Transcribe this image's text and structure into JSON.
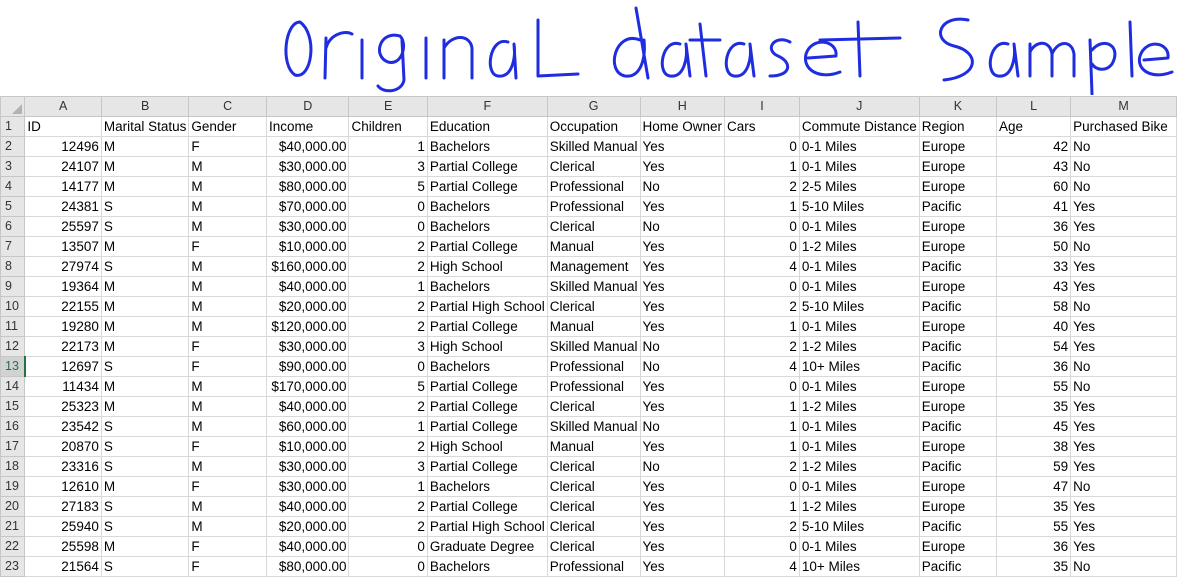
{
  "annotation": {
    "text": "original dataset Sample",
    "color": "#1f2de0"
  },
  "sheet": {
    "columns": [
      "A",
      "B",
      "C",
      "D",
      "E",
      "F",
      "G",
      "H",
      "I",
      "J",
      "K",
      "L",
      "M"
    ],
    "selected_row": "13",
    "header_row": {
      "row": "1",
      "cells": [
        "ID",
        "Marital Status",
        "Gender",
        "Income",
        "Children",
        "Education",
        "Occupation",
        "Home Owner",
        "Cars",
        "Commute Distance",
        "Region",
        "Age",
        "Purchased Bike"
      ]
    },
    "rows": [
      {
        "row": "2",
        "cells": [
          "12496",
          "M",
          "F",
          "$40,000.00",
          "1",
          "Bachelors",
          "Skilled Manual",
          "Yes",
          "0",
          "0-1 Miles",
          "Europe",
          "42",
          "No"
        ]
      },
      {
        "row": "3",
        "cells": [
          "24107",
          "M",
          "M",
          "$30,000.00",
          "3",
          "Partial College",
          "Clerical",
          "Yes",
          "1",
          "0-1 Miles",
          "Europe",
          "43",
          "No"
        ]
      },
      {
        "row": "4",
        "cells": [
          "14177",
          "M",
          "M",
          "$80,000.00",
          "5",
          "Partial College",
          "Professional",
          "No",
          "2",
          "2-5 Miles",
          "Europe",
          "60",
          "No"
        ]
      },
      {
        "row": "5",
        "cells": [
          "24381",
          "S",
          "M",
          "$70,000.00",
          "0",
          "Bachelors",
          "Professional",
          "Yes",
          "1",
          "5-10 Miles",
          "Pacific",
          "41",
          "Yes"
        ]
      },
      {
        "row": "6",
        "cells": [
          "25597",
          "S",
          "M",
          "$30,000.00",
          "0",
          "Bachelors",
          "Clerical",
          "No",
          "0",
          "0-1 Miles",
          "Europe",
          "36",
          "Yes"
        ]
      },
      {
        "row": "7",
        "cells": [
          "13507",
          "M",
          "F",
          "$10,000.00",
          "2",
          "Partial College",
          "Manual",
          "Yes",
          "0",
          "1-2 Miles",
          "Europe",
          "50",
          "No"
        ]
      },
      {
        "row": "8",
        "cells": [
          "27974",
          "S",
          "M",
          "$160,000.00",
          "2",
          "High School",
          "Management",
          "Yes",
          "4",
          "0-1 Miles",
          "Pacific",
          "33",
          "Yes"
        ]
      },
      {
        "row": "9",
        "cells": [
          "19364",
          "M",
          "M",
          "$40,000.00",
          "1",
          "Bachelors",
          "Skilled Manual",
          "Yes",
          "0",
          "0-1 Miles",
          "Europe",
          "43",
          "Yes"
        ]
      },
      {
        "row": "10",
        "cells": [
          "22155",
          "M",
          "M",
          "$20,000.00",
          "2",
          "Partial High School",
          "Clerical",
          "Yes",
          "2",
          "5-10 Miles",
          "Pacific",
          "58",
          "No"
        ]
      },
      {
        "row": "11",
        "cells": [
          "19280",
          "M",
          "M",
          "$120,000.00",
          "2",
          "Partial College",
          "Manual",
          "Yes",
          "1",
          "0-1 Miles",
          "Europe",
          "40",
          "Yes"
        ]
      },
      {
        "row": "12",
        "cells": [
          "22173",
          "M",
          "F",
          "$30,000.00",
          "3",
          "High School",
          "Skilled Manual",
          "No",
          "2",
          "1-2 Miles",
          "Pacific",
          "54",
          "Yes"
        ]
      },
      {
        "row": "13",
        "cells": [
          "12697",
          "S",
          "F",
          "$90,000.00",
          "0",
          "Bachelors",
          "Professional",
          "No",
          "4",
          "10+ Miles",
          "Pacific",
          "36",
          "No"
        ]
      },
      {
        "row": "14",
        "cells": [
          "11434",
          "M",
          "M",
          "$170,000.00",
          "5",
          "Partial College",
          "Professional",
          "Yes",
          "0",
          "0-1 Miles",
          "Europe",
          "55",
          "No"
        ]
      },
      {
        "row": "15",
        "cells": [
          "25323",
          "M",
          "M",
          "$40,000.00",
          "2",
          "Partial College",
          "Clerical",
          "Yes",
          "1",
          "1-2 Miles",
          "Europe",
          "35",
          "Yes"
        ]
      },
      {
        "row": "16",
        "cells": [
          "23542",
          "S",
          "M",
          "$60,000.00",
          "1",
          "Partial College",
          "Skilled Manual",
          "No",
          "1",
          "0-1 Miles",
          "Pacific",
          "45",
          "Yes"
        ]
      },
      {
        "row": "17",
        "cells": [
          "20870",
          "S",
          "F",
          "$10,000.00",
          "2",
          "High School",
          "Manual",
          "Yes",
          "1",
          "0-1 Miles",
          "Europe",
          "38",
          "Yes"
        ]
      },
      {
        "row": "18",
        "cells": [
          "23316",
          "S",
          "M",
          "$30,000.00",
          "3",
          "Partial College",
          "Clerical",
          "No",
          "2",
          "1-2 Miles",
          "Pacific",
          "59",
          "Yes"
        ]
      },
      {
        "row": "19",
        "cells": [
          "12610",
          "M",
          "F",
          "$30,000.00",
          "1",
          "Bachelors",
          "Clerical",
          "Yes",
          "0",
          "0-1 Miles",
          "Europe",
          "47",
          "No"
        ]
      },
      {
        "row": "20",
        "cells": [
          "27183",
          "S",
          "M",
          "$40,000.00",
          "2",
          "Partial College",
          "Clerical",
          "Yes",
          "1",
          "1-2 Miles",
          "Europe",
          "35",
          "Yes"
        ]
      },
      {
        "row": "21",
        "cells": [
          "25940",
          "S",
          "M",
          "$20,000.00",
          "2",
          "Partial High School",
          "Clerical",
          "Yes",
          "2",
          "5-10 Miles",
          "Pacific",
          "55",
          "Yes"
        ]
      },
      {
        "row": "22",
        "cells": [
          "25598",
          "M",
          "F",
          "$40,000.00",
          "0",
          "Graduate Degree",
          "Clerical",
          "Yes",
          "0",
          "0-1 Miles",
          "Europe",
          "36",
          "Yes"
        ]
      },
      {
        "row": "23",
        "cells": [
          "21564",
          "S",
          "F",
          "$80,000.00",
          "0",
          "Bachelors",
          "Professional",
          "Yes",
          "4",
          "10+ Miles",
          "Pacific",
          "35",
          "No"
        ]
      }
    ]
  }
}
